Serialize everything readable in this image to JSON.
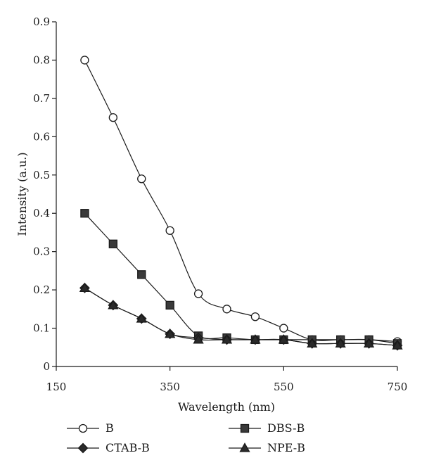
{
  "chart_data": {
    "type": "line",
    "title": "",
    "xlabel": "Wavelength (nm)",
    "ylabel": "Intensity (a.u.)",
    "xlim": [
      150,
      750
    ],
    "ylim": [
      0,
      0.9
    ],
    "xticks": [
      150,
      350,
      550,
      750
    ],
    "yticks": [
      0,
      0.1,
      0.2,
      0.3,
      0.4,
      0.5,
      0.6,
      0.7,
      0.8,
      0.9
    ],
    "xtick_labels": [
      "150",
      "350",
      "550",
      "750"
    ],
    "ytick_labels": [
      "0",
      "0.1",
      "0.2",
      "0.3",
      "0.4",
      "0.5",
      "0.6",
      "0.7",
      "0.8",
      "0.9"
    ],
    "grid": false,
    "legend_position": "bottom",
    "x": [
      200,
      250,
      300,
      350,
      400,
      450,
      500,
      550,
      600,
      650,
      700,
      750
    ],
    "series": [
      {
        "name": "B",
        "marker": "circle-open",
        "values": [
          0.8,
          0.65,
          0.49,
          0.355,
          0.19,
          0.15,
          0.13,
          0.1,
          0.07,
          0.07,
          0.07,
          0.065
        ]
      },
      {
        "name": "DBS-B",
        "marker": "square-filled",
        "values": [
          0.4,
          0.32,
          0.24,
          0.16,
          0.08,
          0.075,
          0.07,
          0.07,
          0.07,
          0.07,
          0.07,
          0.06
        ]
      },
      {
        "name": "CTAB-B",
        "marker": "diamond-filled",
        "values": [
          0.205,
          0.16,
          0.125,
          0.085,
          0.075,
          0.07,
          0.07,
          0.07,
          0.06,
          0.06,
          0.06,
          0.055
        ]
      },
      {
        "name": "NPE-B",
        "marker": "triangle-filled",
        "values": [
          0.205,
          0.16,
          0.125,
          0.085,
          0.07,
          0.07,
          0.07,
          0.07,
          0.06,
          0.06,
          0.06,
          0.055
        ]
      }
    ]
  }
}
